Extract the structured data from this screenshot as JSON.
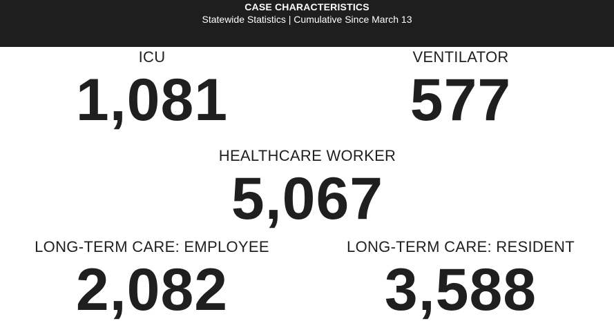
{
  "header": {
    "title": "CASE CHARACTERISTICS",
    "subtitle": "Statewide Statistics  |  Cumulative Since March 13"
  },
  "stats": {
    "icu": {
      "label": "ICU",
      "value": "1,081"
    },
    "ventilator": {
      "label": "VENTILATOR",
      "value": "577"
    },
    "healthcare_worker": {
      "label": "HEALTHCARE WORKER",
      "value": "5,067"
    },
    "ltc_employee": {
      "label": "LONG-TERM CARE: EMPLOYEE",
      "value": "2,082"
    },
    "ltc_resident": {
      "label": "LONG-TERM CARE: RESIDENT",
      "value": "3,588"
    }
  },
  "colors": {
    "header_bg": "#1e1e1e",
    "header_text": "#ffffff",
    "body_text": "#1f1f1f",
    "page_bg": "#ffffff"
  }
}
